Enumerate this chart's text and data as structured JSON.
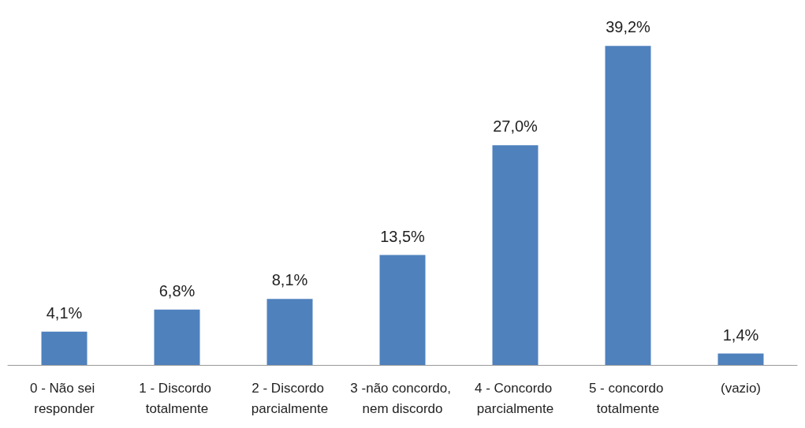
{
  "chart_data": {
    "type": "bar",
    "categories": [
      "0 - Não sei responder",
      "1 - Discordo totalmente",
      "2 - Discordo parcialmente",
      "3 -não concordo, nem discordo",
      "4 - Concordo parcialmente",
      "5 - concordo totalmente",
      "(vazio)"
    ],
    "series": [
      {
        "color": "#4f81bd",
        "values": [
          4.1,
          6.8,
          8.1,
          13.5,
          27.0,
          39.2,
          1.4
        ],
        "value_labels": [
          "4,1%",
          "6,8%",
          "8,1%",
          "13,5%",
          "27,0%",
          "39,2%",
          "1,4%"
        ]
      }
    ],
    "relative": false
  }
}
